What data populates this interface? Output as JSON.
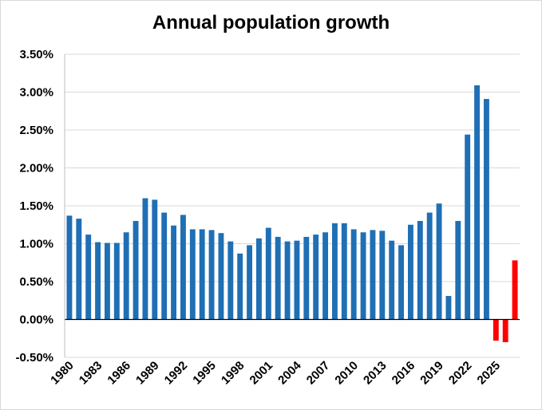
{
  "chart_data": {
    "type": "bar",
    "title": "Annual population growth",
    "xlabel": "",
    "ylabel": "",
    "ylim": [
      -0.5,
      3.5
    ],
    "y_ticks": [
      "-0.50%",
      "0.00%",
      "0.50%",
      "1.00%",
      "1.50%",
      "2.00%",
      "2.50%",
      "3.00%",
      "3.50%"
    ],
    "y_tick_values": [
      -0.5,
      0,
      0.5,
      1.0,
      1.5,
      2.0,
      2.5,
      3.0,
      3.5
    ],
    "x_tick_labels": [
      "1980",
      "1983",
      "1986",
      "1989",
      "1992",
      "1995",
      "1998",
      "2001",
      "2004",
      "2007",
      "2010",
      "2013",
      "2016",
      "2019",
      "2022",
      "2025"
    ],
    "grid": true,
    "legend": "none",
    "categories": [
      1980,
      1981,
      1982,
      1983,
      1984,
      1985,
      1986,
      1987,
      1988,
      1989,
      1990,
      1991,
      1992,
      1993,
      1994,
      1995,
      1996,
      1997,
      1998,
      1999,
      2000,
      2001,
      2002,
      2003,
      2004,
      2005,
      2006,
      2007,
      2008,
      2009,
      2010,
      2011,
      2012,
      2013,
      2014,
      2015,
      2016,
      2017,
      2018,
      2019,
      2020,
      2021,
      2022,
      2023,
      2024,
      2025,
      2026,
      2027
    ],
    "values": [
      1.37,
      1.33,
      1.12,
      1.02,
      1.01,
      1.01,
      1.15,
      1.3,
      1.6,
      1.58,
      1.41,
      1.24,
      1.38,
      1.19,
      1.19,
      1.18,
      1.14,
      1.03,
      0.87,
      0.98,
      1.07,
      1.21,
      1.09,
      1.03,
      1.04,
      1.09,
      1.12,
      1.15,
      1.27,
      1.27,
      1.19,
      1.15,
      1.18,
      1.17,
      1.04,
      0.98,
      1.25,
      1.3,
      1.41,
      1.53,
      0.31,
      1.3,
      2.44,
      3.09,
      2.91,
      -0.28,
      -0.3,
      0.78
    ],
    "bar_colors": {
      "actual": "#1f6fb5",
      "projection": "#ff0000"
    },
    "projection_from": 2025,
    "axis_color": "#000000",
    "grid_color": "#d9d9d9"
  }
}
